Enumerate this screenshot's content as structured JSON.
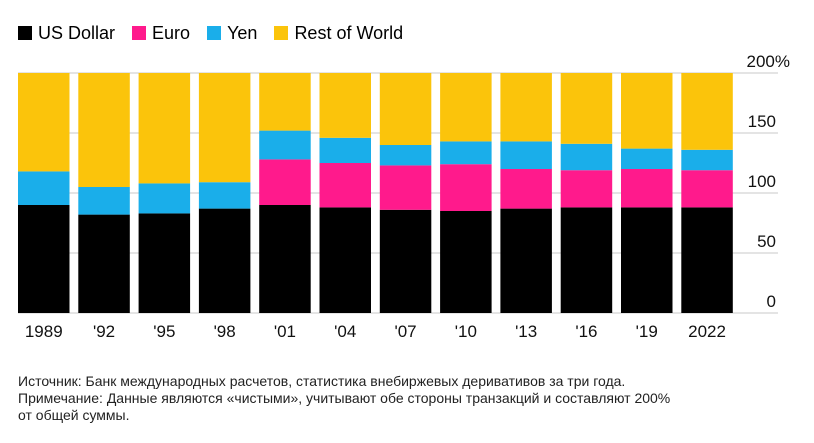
{
  "legend": [
    {
      "label": "US Dollar",
      "color": "#000000"
    },
    {
      "label": "Euro",
      "color": "#ff1a8c"
    },
    {
      "label": "Yen",
      "color": "#1aaeea"
    },
    {
      "label": "Rest of World",
      "color": "#fbc40b"
    }
  ],
  "chart_data": {
    "type": "bar",
    "stacked": true,
    "categories": [
      "1989",
      "'92",
      "'95",
      "'98",
      "'01",
      "'04",
      "'07",
      "'10",
      "'13",
      "'16",
      "'19",
      "2022"
    ],
    "series": [
      {
        "name": "US Dollar",
        "color": "#000000",
        "values": [
          90,
          82,
          83,
          87,
          90,
          88,
          86,
          85,
          87,
          88,
          88,
          88
        ]
      },
      {
        "name": "Euro",
        "color": "#ff1a8c",
        "values": [
          0,
          0,
          0,
          0,
          38,
          37,
          37,
          39,
          33,
          31,
          32,
          31
        ]
      },
      {
        "name": "Yen",
        "color": "#1aaeea",
        "values": [
          28,
          23,
          25,
          22,
          24,
          21,
          17,
          19,
          23,
          22,
          17,
          17
        ]
      },
      {
        "name": "Rest of World",
        "color": "#fbc40b",
        "values": [
          82,
          95,
          92,
          91,
          48,
          54,
          60,
          57,
          57,
          59,
          63,
          64
        ]
      }
    ],
    "ylim": [
      0,
      200
    ],
    "yticks": [
      0,
      50,
      100,
      150,
      200
    ],
    "ytick_labels": [
      "0",
      "50",
      "100",
      "150",
      "200%"
    ],
    "axis_side": "right",
    "grid": true
  },
  "footnote": {
    "line1": "Источник: Банк международных расчетов, статистика внебиржевых деривативов за три года.",
    "line2": "Примечание: Данные являются «чистыми», учитывают обе стороны транзакций и составляют 200%",
    "line3": "от общей суммы."
  }
}
